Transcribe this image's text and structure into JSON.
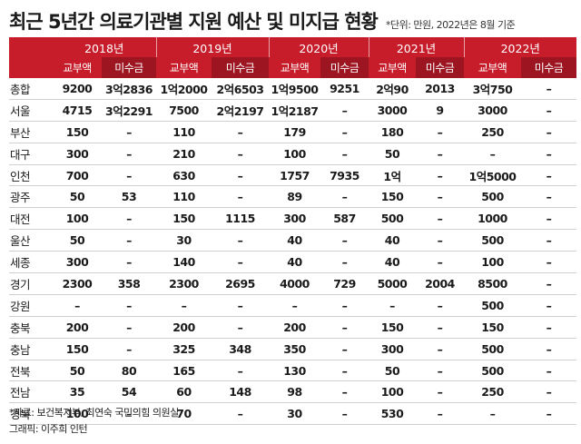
{
  "title": "최근 5년간 의료기관별 지원 예산 및 미지급 현황",
  "subtitle": "*단위: 만원, 2022년은 8월 기준",
  "years": [
    "2018년",
    "2019년",
    "2020년",
    "2021년",
    "2022년"
  ],
  "subheaders": [
    "교부액",
    "미수금"
  ],
  "rows": [
    {
      "region": "총합",
      "cells": [
        "9200",
        "3억2836",
        "1억2000",
        "2억6503",
        "1억9500",
        "9251",
        "2억90",
        "2013",
        "3억750",
        "–"
      ]
    },
    {
      "region": "서울",
      "cells": [
        "4715",
        "3억2291",
        "7500",
        "2억2197",
        "1억2187",
        "–",
        "3000",
        "9",
        "3000",
        "–"
      ]
    },
    {
      "region": "부산",
      "cells": [
        "150",
        "–",
        "110",
        "–",
        "179",
        "–",
        "180",
        "–",
        "250",
        "–"
      ]
    },
    {
      "region": "대구",
      "cells": [
        "300",
        "–",
        "210",
        "–",
        "100",
        "–",
        "50",
        "–",
        "–",
        "–"
      ]
    },
    {
      "region": "인천",
      "cells": [
        "700",
        "–",
        "630",
        "–",
        "1757",
        "7935",
        "1억",
        "–",
        "1억5000",
        "–"
      ]
    },
    {
      "region": "광주",
      "cells": [
        "50",
        "53",
        "110",
        "–",
        "89",
        "–",
        "150",
        "–",
        "500",
        "–"
      ]
    },
    {
      "region": "대전",
      "cells": [
        "100",
        "–",
        "150",
        "1115",
        "300",
        "587",
        "500",
        "–",
        "1000",
        "–"
      ]
    },
    {
      "region": "울산",
      "cells": [
        "50",
        "–",
        "30",
        "–",
        "40",
        "–",
        "40",
        "–",
        "500",
        "–"
      ]
    },
    {
      "region": "세종",
      "cells": [
        "300",
        "–",
        "140",
        "–",
        "40",
        "–",
        "40",
        "–",
        "100",
        "–"
      ]
    },
    {
      "region": "경기",
      "cells": [
        "2300",
        "358",
        "2300",
        "2695",
        "4000",
        "729",
        "5000",
        "2004",
        "8500",
        "–"
      ]
    },
    {
      "region": "강원",
      "cells": [
        "–",
        "–",
        "–",
        "–",
        "–",
        "–",
        "–",
        "–",
        "500",
        "–"
      ]
    },
    {
      "region": "충북",
      "cells": [
        "200",
        "–",
        "200",
        "–",
        "200",
        "–",
        "150",
        "–",
        "150",
        "–"
      ]
    },
    {
      "region": "충남",
      "cells": [
        "150",
        "–",
        "325",
        "348",
        "350",
        "–",
        "300",
        "–",
        "500",
        "–"
      ]
    },
    {
      "region": "전북",
      "cells": [
        "50",
        "80",
        "165",
        "–",
        "130",
        "–",
        "50",
        "–",
        "500",
        "–"
      ]
    },
    {
      "region": "전남",
      "cells": [
        "35",
        "54",
        "60",
        "148",
        "98",
        "–",
        "100",
        "–",
        "250",
        "–"
      ]
    },
    {
      "region": "경북",
      "cells": [
        "100",
        "–",
        "70",
        "–",
        "30",
        "–",
        "530",
        "–",
        "–",
        "–"
      ]
    }
  ],
  "source": "*자료: 보건복지부, 최연숙 국민의힘 의원실",
  "credit": "그래픽: 이주희 인턴",
  "colors": {
    "header_red": "#c71d2b",
    "header_dark": "#9d1521"
  }
}
